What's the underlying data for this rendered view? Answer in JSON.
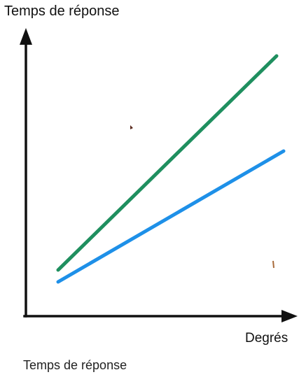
{
  "chart_data": {
    "type": "line",
    "ylabel": "Temps de réponse",
    "xlabel": "Degrés",
    "caption": "Temps de réponse",
    "grid": false,
    "legend": "none",
    "series": [
      {
        "color": "#1f8f5f",
        "x": [
          0,
          1
        ],
        "y": [
          0.1,
          1.0
        ]
      },
      {
        "color": "#1e90e8",
        "x": [
          0,
          1
        ],
        "y": [
          0.05,
          0.6
        ]
      }
    ]
  }
}
